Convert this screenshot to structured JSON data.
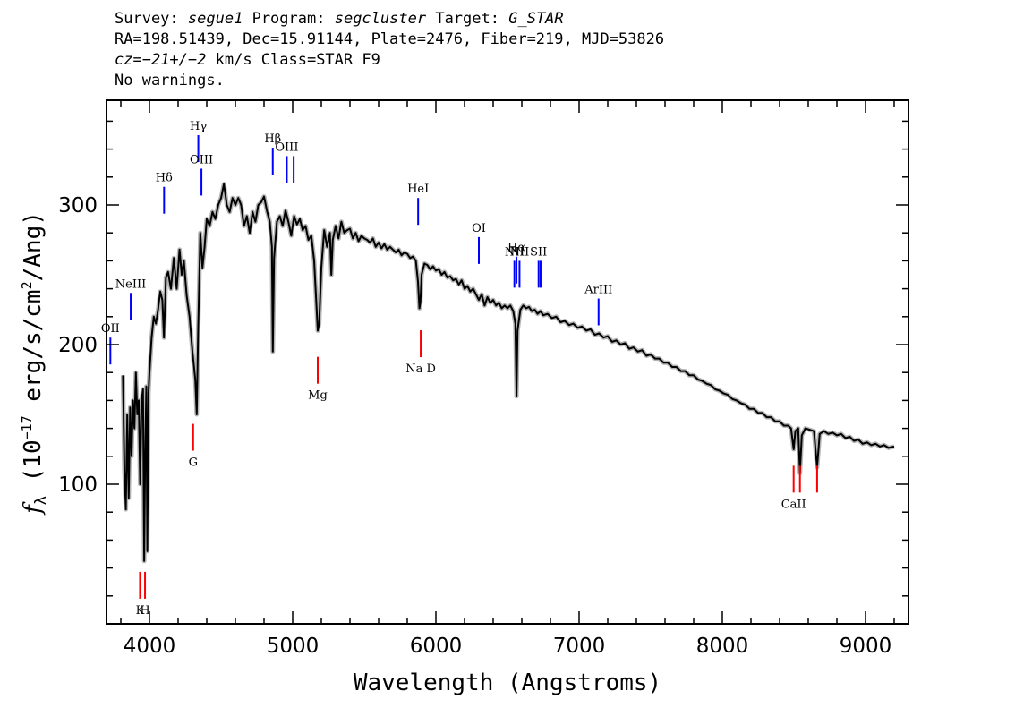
{
  "header": {
    "line1": {
      "survey_label": "Survey:",
      "survey": "segue1",
      "program_label": "Program:",
      "program": "segcluster",
      "target_label": "Target:",
      "target": "G_STAR"
    },
    "line2": "RA=198.51439, Dec=15.91144, Plate=2476, Fiber=219, MJD=53826",
    "line3": {
      "cz_label": "cz",
      "cz_value": "=−21+/−2",
      "cz_rest": " km/s Class=STAR F9"
    },
    "line4": "No warnings."
  },
  "chart_data": {
    "type": "line",
    "xlabel": "Wavelength (Angstroms)",
    "ylabel_prefix": "f",
    "ylabel_sub": "λ",
    "ylabel_main": " (10",
    "ylabel_exp": "−17",
    "ylabel_mid": " erg/s/cm",
    "ylabel_exp2": "2",
    "ylabel_end": "/Ang)",
    "xlim": [
      3700,
      9300
    ],
    "ylim": [
      0,
      375
    ],
    "x_ticks": [
      4000,
      5000,
      6000,
      7000,
      8000,
      9000
    ],
    "y_ticks": [
      100,
      200,
      300
    ],
    "series": [
      {
        "color": "#000000",
        "error_color": "#b4b4b4",
        "points": [
          [
            3815,
            178
          ],
          [
            3825,
            110
          ],
          [
            3835,
            82
          ],
          [
            3845,
            150
          ],
          [
            3855,
            90
          ],
          [
            3865,
            155
          ],
          [
            3875,
            120
          ],
          [
            3885,
            160
          ],
          [
            3895,
            140
          ],
          [
            3905,
            180
          ],
          [
            3915,
            150
          ],
          [
            3925,
            160
          ],
          [
            3935,
            100
          ],
          [
            3945,
            160
          ],
          [
            3955,
            168
          ],
          [
            3963,
            45
          ],
          [
            3970,
            120
          ],
          [
            3978,
            170
          ],
          [
            3985,
            52
          ],
          [
            3993,
            165
          ],
          [
            4000,
            180
          ],
          [
            4015,
            205
          ],
          [
            4030,
            220
          ],
          [
            4045,
            215
          ],
          [
            4060,
            225
          ],
          [
            4075,
            238
          ],
          [
            4090,
            232
          ],
          [
            4101,
            205
          ],
          [
            4115,
            248
          ],
          [
            4130,
            252
          ],
          [
            4150,
            240
          ],
          [
            4170,
            262
          ],
          [
            4190,
            240
          ],
          [
            4210,
            268
          ],
          [
            4225,
            250
          ],
          [
            4240,
            260
          ],
          [
            4260,
            235
          ],
          [
            4280,
            220
          ],
          [
            4300,
            195
          ],
          [
            4320,
            175
          ],
          [
            4330,
            150
          ],
          [
            4340,
            210
          ],
          [
            4355,
            280
          ],
          [
            4370,
            255
          ],
          [
            4385,
            270
          ],
          [
            4400,
            290
          ],
          [
            4420,
            285
          ],
          [
            4440,
            295
          ],
          [
            4460,
            290
          ],
          [
            4480,
            300
          ],
          [
            4500,
            305
          ],
          [
            4520,
            315
          ],
          [
            4540,
            300
          ],
          [
            4560,
            295
          ],
          [
            4580,
            305
          ],
          [
            4600,
            300
          ],
          [
            4620,
            305
          ],
          [
            4640,
            300
          ],
          [
            4660,
            285
          ],
          [
            4680,
            292
          ],
          [
            4700,
            280
          ],
          [
            4720,
            295
          ],
          [
            4740,
            288
          ],
          [
            4760,
            300
          ],
          [
            4780,
            302
          ],
          [
            4800,
            306
          ],
          [
            4820,
            296
          ],
          [
            4840,
            288
          ],
          [
            4855,
            270
          ],
          [
            4861,
            195
          ],
          [
            4870,
            262
          ],
          [
            4890,
            288
          ],
          [
            4910,
            292
          ],
          [
            4930,
            285
          ],
          [
            4950,
            296
          ],
          [
            4970,
            288
          ],
          [
            4990,
            278
          ],
          [
            5010,
            292
          ],
          [
            5030,
            286
          ],
          [
            5050,
            290
          ],
          [
            5070,
            282
          ],
          [
            5090,
            285
          ],
          [
            5110,
            275
          ],
          [
            5130,
            278
          ],
          [
            5150,
            260
          ],
          [
            5165,
            230
          ],
          [
            5175,
            210
          ],
          [
            5185,
            215
          ],
          [
            5200,
            255
          ],
          [
            5220,
            282
          ],
          [
            5240,
            270
          ],
          [
            5260,
            280
          ],
          [
            5270,
            250
          ],
          [
            5280,
            275
          ],
          [
            5300,
            285
          ],
          [
            5320,
            276
          ],
          [
            5340,
            288
          ],
          [
            5360,
            280
          ],
          [
            5380,
            282
          ],
          [
            5400,
            283
          ],
          [
            5420,
            276
          ],
          [
            5440,
            280
          ],
          [
            5460,
            274
          ],
          [
            5480,
            278
          ],
          [
            5500,
            276
          ],
          [
            5520,
            275
          ],
          [
            5540,
            273
          ],
          [
            5560,
            276
          ],
          [
            5580,
            270
          ],
          [
            5600,
            273
          ],
          [
            5620,
            269
          ],
          [
            5640,
            272
          ],
          [
            5660,
            268
          ],
          [
            5680,
            270
          ],
          [
            5700,
            268
          ],
          [
            5720,
            266
          ],
          [
            5740,
            268
          ],
          [
            5760,
            264
          ],
          [
            5780,
            266
          ],
          [
            5800,
            265
          ],
          [
            5820,
            262
          ],
          [
            5840,
            263
          ],
          [
            5860,
            260
          ],
          [
            5875,
            245
          ],
          [
            5885,
            226
          ],
          [
            5892,
            230
          ],
          [
            5900,
            250
          ],
          [
            5920,
            258
          ],
          [
            5940,
            257
          ],
          [
            5960,
            254
          ],
          [
            5980,
            256
          ],
          [
            6000,
            253
          ],
          [
            6020,
            254
          ],
          [
            6040,
            250
          ],
          [
            6060,
            252
          ],
          [
            6080,
            248
          ],
          [
            6100,
            249
          ],
          [
            6120,
            246
          ],
          [
            6140,
            247
          ],
          [
            6160,
            243
          ],
          [
            6180,
            246
          ],
          [
            6200,
            240
          ],
          [
            6220,
            242
          ],
          [
            6240,
            238
          ],
          [
            6260,
            240
          ],
          [
            6280,
            236
          ],
          [
            6300,
            232
          ],
          [
            6320,
            236
          ],
          [
            6340,
            228
          ],
          [
            6360,
            234
          ],
          [
            6380,
            230
          ],
          [
            6400,
            232
          ],
          [
            6420,
            228
          ],
          [
            6440,
            230
          ],
          [
            6460,
            226
          ],
          [
            6480,
            228
          ],
          [
            6500,
            226
          ],
          [
            6520,
            228
          ],
          [
            6540,
            224
          ],
          [
            6555,
            215
          ],
          [
            6563,
            163
          ],
          [
            6570,
            210
          ],
          [
            6590,
            225
          ],
          [
            6610,
            228
          ],
          [
            6630,
            226
          ],
          [
            6650,
            227
          ],
          [
            6670,
            224
          ],
          [
            6690,
            225
          ],
          [
            6710,
            222
          ],
          [
            6730,
            224
          ],
          [
            6750,
            221
          ],
          [
            6780,
            222
          ],
          [
            6810,
            219
          ],
          [
            6840,
            220
          ],
          [
            6870,
            216
          ],
          [
            6900,
            217
          ],
          [
            6930,
            214
          ],
          [
            6960,
            215
          ],
          [
            6990,
            212
          ],
          [
            7020,
            213
          ],
          [
            7050,
            210
          ],
          [
            7080,
            211
          ],
          [
            7110,
            207
          ],
          [
            7140,
            208
          ],
          [
            7170,
            205
          ],
          [
            7200,
            206
          ],
          [
            7230,
            202
          ],
          [
            7260,
            203
          ],
          [
            7290,
            200
          ],
          [
            7320,
            201
          ],
          [
            7350,
            197
          ],
          [
            7380,
            198
          ],
          [
            7410,
            195
          ],
          [
            7440,
            196
          ],
          [
            7470,
            192
          ],
          [
            7500,
            193
          ],
          [
            7530,
            190
          ],
          [
            7560,
            190
          ],
          [
            7590,
            187
          ],
          [
            7620,
            187
          ],
          [
            7650,
            184
          ],
          [
            7680,
            184
          ],
          [
            7710,
            181
          ],
          [
            7740,
            181
          ],
          [
            7770,
            178
          ],
          [
            7800,
            178
          ],
          [
            7830,
            175
          ],
          [
            7860,
            174
          ],
          [
            7890,
            172
          ],
          [
            7920,
            171
          ],
          [
            7950,
            168
          ],
          [
            7980,
            167
          ],
          [
            8010,
            165
          ],
          [
            8040,
            164
          ],
          [
            8070,
            161
          ],
          [
            8100,
            160
          ],
          [
            8130,
            158
          ],
          [
            8160,
            157
          ],
          [
            8190,
            154
          ],
          [
            8220,
            154
          ],
          [
            8250,
            151
          ],
          [
            8280,
            151
          ],
          [
            8310,
            148
          ],
          [
            8340,
            148
          ],
          [
            8370,
            145
          ],
          [
            8400,
            145
          ],
          [
            8430,
            142
          ],
          [
            8460,
            142
          ],
          [
            8480,
            140
          ],
          [
            8498,
            125
          ],
          [
            8510,
            138
          ],
          [
            8530,
            140
          ],
          [
            8542,
            108
          ],
          [
            8555,
            135
          ],
          [
            8580,
            140
          ],
          [
            8610,
            139
          ],
          [
            8640,
            138
          ],
          [
            8662,
            112
          ],
          [
            8680,
            136
          ],
          [
            8710,
            138
          ],
          [
            8740,
            136
          ],
          [
            8770,
            137
          ],
          [
            8800,
            135
          ],
          [
            8830,
            136
          ],
          [
            8860,
            133
          ],
          [
            8890,
            134
          ],
          [
            8920,
            131
          ],
          [
            8950,
            132
          ],
          [
            8980,
            129
          ],
          [
            9010,
            130
          ],
          [
            9040,
            128
          ],
          [
            9070,
            129
          ],
          [
            9100,
            127
          ],
          [
            9130,
            128
          ],
          [
            9160,
            126
          ],
          [
            9200,
            127
          ]
        ]
      }
    ],
    "emission_lines": [
      {
        "label": "OII",
        "wave": 3727,
        "y": 205
      },
      {
        "label": "NeIII",
        "wave": 3869,
        "y": 237
      },
      {
        "label": "Hδ",
        "wave": 4102,
        "y": 313
      },
      {
        "label": "Hγ",
        "wave": 4341,
        "y": 350
      },
      {
        "label": "OIII",
        "wave": 4363,
        "y": 326
      },
      {
        "label": "Hβ",
        "wave": 4861,
        "y": 341
      },
      {
        "label": "OIII",
        "wave": 4959,
        "y": 335
      },
      {
        "label": "",
        "wave": 5007,
        "y": 335
      },
      {
        "label": "HeI",
        "wave": 5876,
        "y": 305
      },
      {
        "label": "OI",
        "wave": 6300,
        "y": 277
      },
      {
        "label": "NII",
        "wave": 6548,
        "y": 260
      },
      {
        "label": "Hα",
        "wave": 6563,
        "y": 263
      },
      {
        "label": "NII",
        "wave": 6584,
        "y": 260
      },
      {
        "label": "SII",
        "wave": 6717,
        "y": 260
      },
      {
        "label": "",
        "wave": 6731,
        "y": 260
      },
      {
        "label": "ArIII",
        "wave": 7136,
        "y": 233
      }
    ],
    "absorption_lines": [
      {
        "label": "K",
        "wave": 3934,
        "y": 18
      },
      {
        "label": "H",
        "wave": 3969,
        "y": 18
      },
      {
        "label": "G",
        "wave": 4305,
        "y": 124
      },
      {
        "label": "Mg",
        "wave": 5175,
        "y": 172
      },
      {
        "label": "Na D",
        "wave": 5894,
        "y": 191
      },
      {
        "label": "CaII",
        "wave": 8498,
        "y": 94
      },
      {
        "label": "",
        "wave": 8542,
        "y": 94
      },
      {
        "label": "",
        "wave": 8662,
        "y": 94
      }
    ],
    "emission_color": "#0000ff",
    "absorption_color": "#ff0000",
    "marker_color": "#000000"
  }
}
